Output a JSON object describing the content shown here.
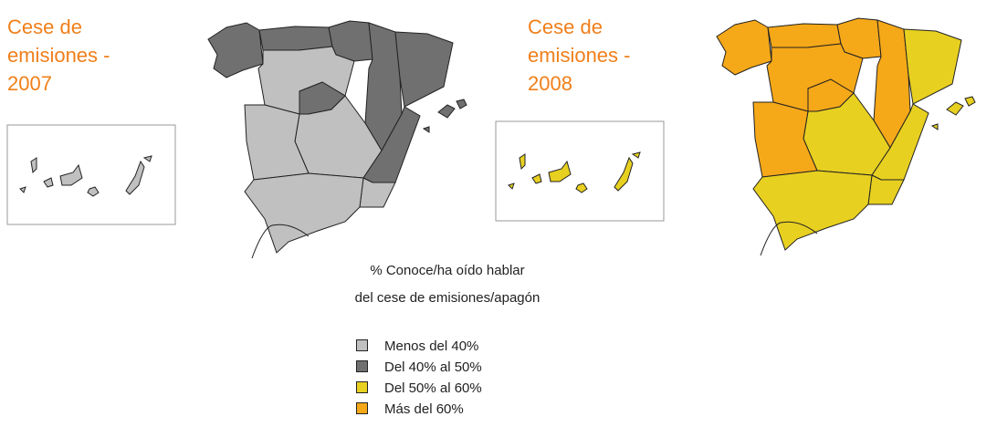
{
  "maps": [
    {
      "title": "Cese de emisiones - 2007"
    },
    {
      "title": "Cese de emisiones - 2008"
    }
  ],
  "legend": {
    "title_lines": [
      "% Conoce/ha oído hablar",
      "del cese de emisiones/apagón"
    ],
    "items": [
      {
        "label": "Menos del 40%",
        "color": "#c0c0c0"
      },
      {
        "label": "Del 40% al 50%",
        "color": "#707070"
      },
      {
        "label": "Del 50% al 60%",
        "color": "#e8d020"
      },
      {
        "label": "Más del 60%",
        "color": "#f5a818"
      }
    ]
  }
}
